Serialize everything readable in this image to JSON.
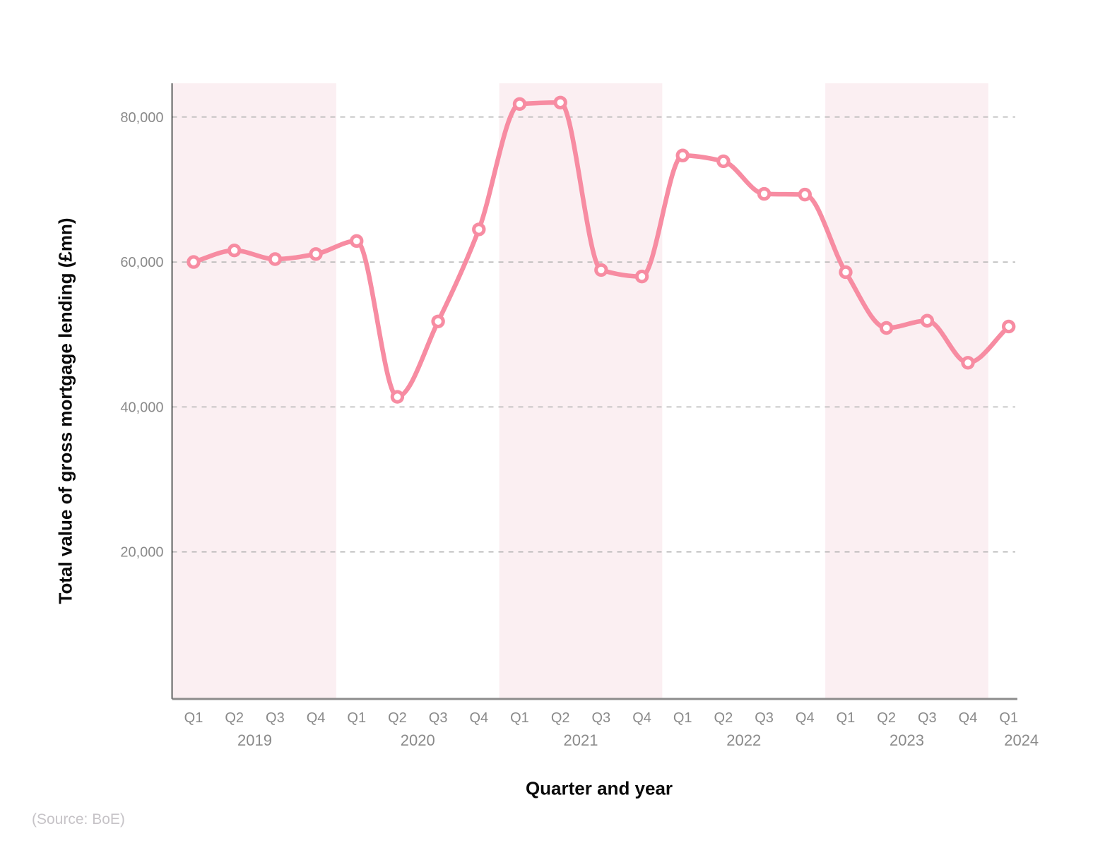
{
  "chart_data": {
    "type": "line",
    "title": "",
    "xlabel": "Quarter and year",
    "ylabel": "Total value of gross mortgage lending (£mn)",
    "categories": [
      "2019 Q1",
      "2019 Q2",
      "2019 Q3",
      "2019 Q4",
      "2020 Q1",
      "2020 Q2",
      "2020 Q3",
      "2020 Q4",
      "2021 Q1",
      "2021 Q2",
      "2021 Q3",
      "2021 Q4",
      "2022 Q1",
      "2022 Q2",
      "2022 Q3",
      "2022 Q4",
      "2023 Q1",
      "2023 Q2",
      "2023 Q3",
      "2023 Q4",
      "2024 Q1"
    ],
    "values": [
      60000,
      61600,
      60400,
      61100,
      62900,
      41400,
      51800,
      64500,
      81800,
      82000,
      58900,
      58000,
      74700,
      73900,
      69400,
      69300,
      58600,
      50900,
      51900,
      46100,
      51100
    ],
    "ylim": [
      0,
      85000
    ],
    "yticks": [
      20000,
      40000,
      60000,
      80000
    ],
    "ytick_labels": [
      "20,000",
      "40,000",
      "60,000",
      "80,000"
    ],
    "grid": "horizontal-dashed",
    "legend": "none",
    "marker": "open-circle",
    "x_axis": {
      "year_groups": [
        {
          "label": "2019",
          "quarters": [
            "Q1",
            "Q2",
            "Q3",
            "Q4"
          ],
          "shaded": true
        },
        {
          "label": "2020",
          "quarters": [
            "Q1",
            "Q2",
            "Q3",
            "Q4"
          ],
          "shaded": false
        },
        {
          "label": "2021",
          "quarters": [
            "Q1",
            "Q2",
            "Q3",
            "Q4"
          ],
          "shaded": true
        },
        {
          "label": "2022",
          "quarters": [
            "Q1",
            "Q2",
            "Q3",
            "Q4"
          ],
          "shaded": false
        },
        {
          "label": "2023",
          "quarters": [
            "Q1",
            "Q2",
            "Q3",
            "Q4"
          ],
          "shaded": true
        },
        {
          "label": "2024",
          "quarters": [
            "Q1"
          ],
          "shaded": false
        }
      ]
    },
    "colors": {
      "line": "#F78CA2",
      "marker_fill": "#FFFFFF",
      "year_band": "#FBEFF2",
      "gridline": "#B3B3B3",
      "tick_text": "#8A8A8A",
      "x_axis_line": "#8C8C8C",
      "y_axis_line": "#1A1A1A",
      "axis_title_text": "#0A0A0A",
      "source_text": "#C6C3C7"
    }
  },
  "footer": {
    "source": "(Source: BoE)"
  }
}
